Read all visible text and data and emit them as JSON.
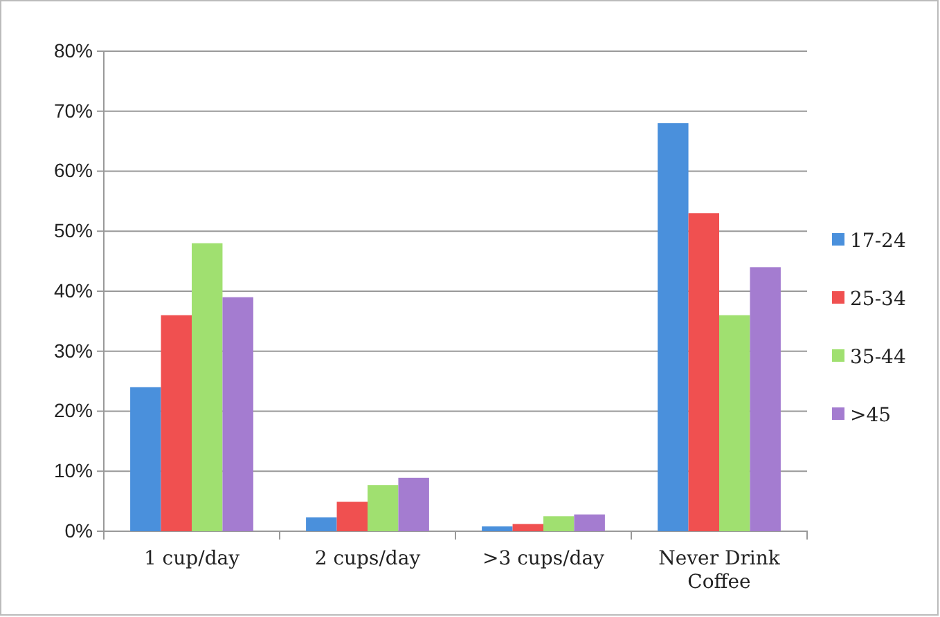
{
  "chart_data": {
    "type": "bar",
    "categories": [
      "1 cup/day",
      "2 cups/day",
      ">3 cups/day",
      "Never Drink Coffee"
    ],
    "series": [
      {
        "name": "17-24",
        "color": "#4a90dc",
        "values": [
          24,
          2.3,
          0.8,
          68
        ]
      },
      {
        "name": "25-34",
        "color": "#f05050",
        "values": [
          36,
          4.9,
          1.2,
          53
        ]
      },
      {
        "name": "35-44",
        "color": "#a0e070",
        "values": [
          48,
          7.7,
          2.5,
          36
        ]
      },
      {
        "name": ">45",
        "color": "#a47cd0",
        "values": [
          39,
          8.9,
          2.8,
          44
        ]
      }
    ],
    "ylim": [
      0,
      80
    ],
    "yticks": [
      {
        "value": 0,
        "label": "0%"
      },
      {
        "value": 10,
        "label": "10%"
      },
      {
        "value": 20,
        "label": "20%"
      },
      {
        "value": 30,
        "label": "30%"
      },
      {
        "value": 40,
        "label": "40%"
      },
      {
        "value": 50,
        "label": "50%"
      },
      {
        "value": 60,
        "label": "60%"
      },
      {
        "value": 70,
        "label": "70%"
      },
      {
        "value": 80,
        "label": "80%"
      }
    ],
    "grid": "y",
    "legend": "right"
  }
}
